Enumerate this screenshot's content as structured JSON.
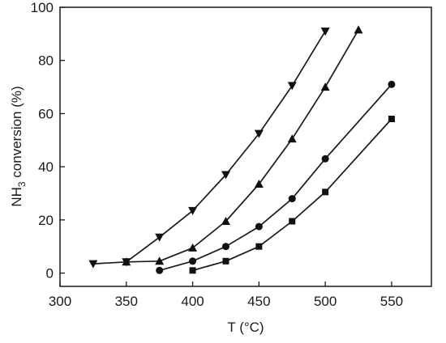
{
  "chart_data": {
    "type": "line",
    "xlabel": "T (°C)",
    "ylabel_main": "NH",
    "ylabel_sub": "3",
    "ylabel_rest": " conversion (%)",
    "xlim": [
      300,
      580
    ],
    "ylim": [
      -5,
      100
    ],
    "xticks": [
      300,
      350,
      400,
      450,
      500,
      550
    ],
    "yticks": [
      0,
      20,
      40,
      60,
      80,
      100
    ],
    "grid": false,
    "legend": "none",
    "series": [
      {
        "marker": "triangle-down",
        "x": [
          325,
          350,
          375,
          400,
          425,
          450,
          475,
          500
        ],
        "y": [
          3.5,
          4.2,
          13.5,
          23.5,
          37,
          52.5,
          70.5,
          91
        ]
      },
      {
        "marker": "triangle-up",
        "x": [
          350,
          375,
          400,
          425,
          450,
          475,
          500,
          525
        ],
        "y": [
          4.2,
          4.5,
          9.5,
          19.5,
          33.5,
          50.5,
          70,
          91.5
        ]
      },
      {
        "marker": "circle",
        "x": [
          375,
          400,
          425,
          450,
          475,
          500,
          550
        ],
        "y": [
          1,
          4.5,
          10,
          17.5,
          28,
          43,
          71
        ]
      },
      {
        "marker": "square",
        "x": [
          400,
          425,
          450,
          475,
          500,
          550
        ],
        "y": [
          1,
          4.5,
          10,
          19.5,
          30.5,
          58
        ]
      }
    ]
  }
}
